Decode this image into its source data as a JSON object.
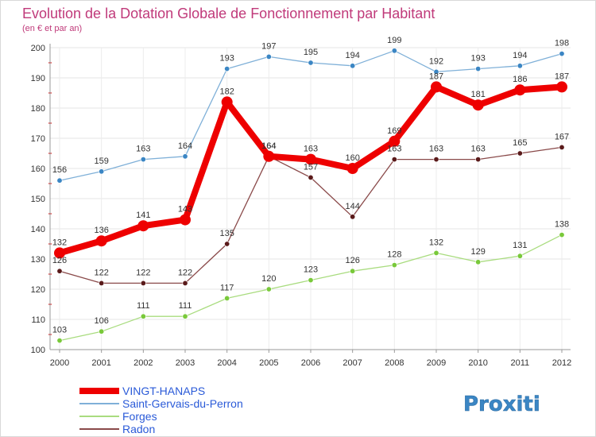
{
  "chart_data": {
    "type": "line",
    "title": "Evolution de la Dotation Globale de Fonctionnement par Habitant",
    "subtitle": "(en € et par an)",
    "xlabel": "",
    "ylabel": "",
    "categories": [
      "2000",
      "2001",
      "2002",
      "2003",
      "2004",
      "2005",
      "2006",
      "2007",
      "2008",
      "2009",
      "2010",
      "2011",
      "2012"
    ],
    "ylim": [
      100,
      200
    ],
    "yticks": [
      100,
      110,
      120,
      130,
      140,
      150,
      160,
      170,
      180,
      190,
      200
    ],
    "grid": true,
    "legend_position": "bottom-left",
    "series": [
      {
        "name": "VINGT-HANAPS",
        "color": "#ee0000",
        "point_color": "#ee0000",
        "values": [
          132,
          136,
          141,
          143,
          182,
          164,
          163,
          160,
          169,
          187,
          181,
          186,
          187
        ]
      },
      {
        "name": "Saint-Gervais-du-Perron",
        "color": "#7fb0d8",
        "point_color": "#3b86c4",
        "values": [
          156,
          159,
          163,
          164,
          193,
          197,
          195,
          194,
          199,
          192,
          193,
          194,
          198
        ]
      },
      {
        "name": "Forges",
        "color": "#a9dc7f",
        "point_color": "#79c93a",
        "values": [
          103,
          106,
          111,
          111,
          117,
          120,
          123,
          126,
          128,
          132,
          129,
          131,
          138
        ]
      },
      {
        "name": "Radon",
        "color": "#8a4a4a",
        "point_color": "#5a1a1a",
        "values": [
          126,
          122,
          122,
          122,
          135,
          164,
          157,
          144,
          163,
          163,
          163,
          165,
          167
        ]
      }
    ]
  },
  "branding": {
    "logo_text": "Proxiti"
  }
}
